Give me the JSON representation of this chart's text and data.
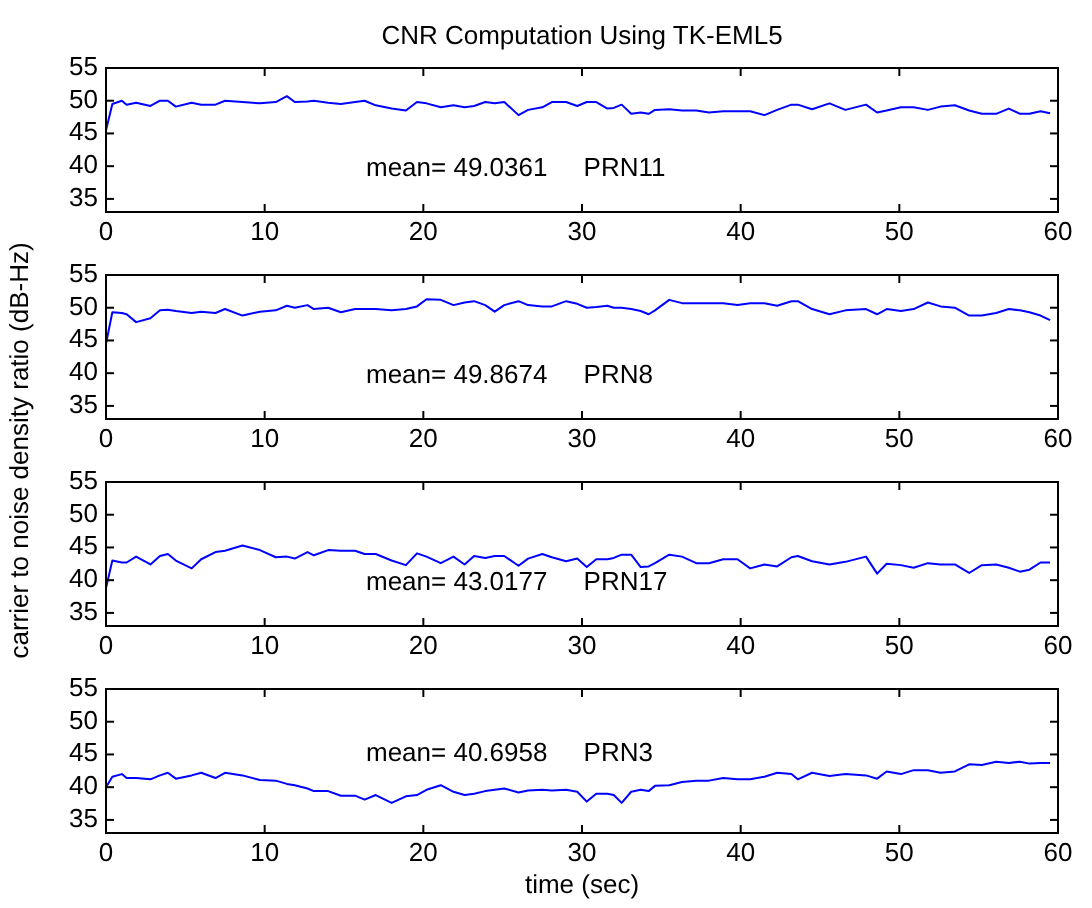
{
  "chart_data": [
    {
      "type": "line",
      "title": "CNR Computation Using TK-EML5",
      "ylabel": "carrier to noise density ratio (dB-Hz)",
      "annotations": [
        "mean= 49.0361     PRN11"
      ],
      "xlim": [
        0,
        60
      ],
      "xticks": [
        0,
        10,
        20,
        30,
        40,
        50,
        60
      ],
      "ylim": [
        33,
        55
      ],
      "yticks": [
        35,
        40,
        45,
        50,
        55
      ],
      "x": [
        0,
        0.4,
        1,
        1.3,
        1.9,
        2.8,
        3.4,
        3.9,
        4.4,
        5.4,
        6,
        6.9,
        7.5,
        8.6,
        9.7,
        10.7,
        11.4,
        11.9,
        12.7,
        13.1,
        14,
        14.8,
        15.7,
        16.3,
        17,
        18,
        18.9,
        19.6,
        20.2,
        21.1,
        21.9,
        22.6,
        23.2,
        23.9,
        24.5,
        25.1,
        26,
        26.6,
        27.5,
        28.1,
        29,
        29.7,
        30.3,
        30.9,
        31.6,
        32,
        32.5,
        33.1,
        33.7,
        34.2,
        34.6,
        35.5,
        36.3,
        37.2,
        38,
        38.9,
        39.8,
        40.6,
        41.5,
        42.3,
        43.2,
        43.6,
        44.5,
        45.6,
        46.6,
        47.9,
        48.6,
        49.2,
        50.1,
        50.9,
        51.8,
        52.6,
        53.5,
        54.4,
        55.2,
        56.1,
        56.9,
        57.6,
        58.2,
        58.9,
        59.5
      ],
      "series": [
        {
          "color": "#0000ff",
          "values": [
            45.5,
            49.5,
            50,
            49.4,
            49.7,
            49.2,
            50,
            50,
            49.1,
            49.7,
            49.4,
            49.4,
            50,
            49.8,
            49.6,
            49.8,
            50.7,
            49.8,
            49.9,
            50,
            49.7,
            49.5,
            49.8,
            50,
            49.3,
            48.8,
            48.5,
            49.8,
            49.6,
            49,
            49.3,
            49,
            49.2,
            49.8,
            49.6,
            49.8,
            47.8,
            48.6,
            49,
            49.8,
            49.8,
            49.2,
            49.8,
            49.8,
            48.8,
            48.9,
            49.4,
            48,
            48.2,
            48,
            48.6,
            48.7,
            48.5,
            48.5,
            48.2,
            48.4,
            48.4,
            48.4,
            47.8,
            48.6,
            49.4,
            49.4,
            48.7,
            49.6,
            48.6,
            49.4,
            48.2,
            48.5,
            49,
            49,
            48.6,
            49.1,
            49.3,
            48.5,
            48,
            48,
            48.8,
            48,
            48,
            48.4,
            48.1
          ]
        }
      ]
    },
    {
      "type": "line",
      "annotations": [
        "mean= 49.8674     PRN8"
      ],
      "xlim": [
        0,
        60
      ],
      "xticks": [
        0,
        10,
        20,
        30,
        40,
        50,
        60
      ],
      "ylim": [
        33,
        55
      ],
      "yticks": [
        35,
        40,
        45,
        50,
        55
      ],
      "x": [
        0,
        0.4,
        1,
        1.3,
        1.9,
        2.8,
        3.4,
        3.9,
        4.4,
        5.4,
        6,
        6.9,
        7.5,
        8.6,
        9.7,
        10.7,
        11.4,
        11.9,
        12.7,
        13.1,
        14,
        14.8,
        15.7,
        16.3,
        17,
        18,
        18.9,
        19.6,
        20.2,
        21.1,
        21.9,
        22.6,
        23.2,
        23.9,
        24.5,
        25.1,
        26,
        26.6,
        27.5,
        28.1,
        29,
        29.7,
        30.3,
        30.9,
        31.6,
        32,
        32.5,
        33.1,
        33.7,
        34.2,
        34.6,
        35.5,
        36.3,
        37.2,
        38,
        38.9,
        39.8,
        40.6,
        41.5,
        42.3,
        43.2,
        43.6,
        44.5,
        45.6,
        46.6,
        47.9,
        48.6,
        49.2,
        50.1,
        50.9,
        51.8,
        52.6,
        53.5,
        54.4,
        55.2,
        56.1,
        56.9,
        57.6,
        58.2,
        58.9,
        59.5
      ],
      "series": [
        {
          "color": "#0000ff",
          "values": [
            44.5,
            49.3,
            49.2,
            49,
            47.8,
            48.4,
            49.6,
            49.7,
            49.5,
            49.2,
            49.4,
            49.2,
            49.8,
            48.8,
            49.4,
            49.6,
            50.3,
            50,
            50.4,
            49.8,
            50,
            49.3,
            49.8,
            49.8,
            49.8,
            49.6,
            49.8,
            50.2,
            51.3,
            51.2,
            50.4,
            50.8,
            51,
            50.4,
            49.4,
            50.4,
            51,
            50.4,
            50.2,
            50.2,
            51,
            50.6,
            50,
            50.1,
            50.3,
            50,
            50,
            49.8,
            49.5,
            49,
            49.6,
            51.2,
            50.7,
            50.7,
            50.7,
            50.7,
            50.4,
            50.7,
            50.7,
            50.3,
            51,
            51,
            49.8,
            49,
            49.6,
            49.8,
            49,
            49.8,
            49.5,
            49.8,
            50.8,
            50.2,
            50,
            48.8,
            48.8,
            49.2,
            49.8,
            49.6,
            49.3,
            48.8,
            48.1
          ]
        }
      ]
    },
    {
      "type": "line",
      "annotations": [
        "mean= 43.0177     PRN17"
      ],
      "xlim": [
        0,
        60
      ],
      "xticks": [
        0,
        10,
        20,
        30,
        40,
        50,
        60
      ],
      "ylim": [
        33,
        55
      ],
      "yticks": [
        35,
        40,
        45,
        50,
        55
      ],
      "x": [
        0,
        0.4,
        1,
        1.3,
        1.9,
        2.8,
        3.4,
        3.9,
        4.4,
        5.4,
        6,
        6.9,
        7.5,
        8.6,
        9.7,
        10.7,
        11.4,
        11.9,
        12.7,
        13.1,
        14,
        14.8,
        15.7,
        16.3,
        17,
        18,
        18.9,
        19.6,
        20.2,
        21.1,
        21.9,
        22.6,
        23.2,
        23.9,
        24.5,
        25.1,
        26,
        26.6,
        27.5,
        28.1,
        29,
        29.7,
        30.3,
        30.9,
        31.6,
        32,
        32.5,
        33.1,
        33.7,
        34.2,
        34.6,
        35.5,
        36.3,
        37.2,
        38,
        38.9,
        39.8,
        40.6,
        41.5,
        42.3,
        43.2,
        43.6,
        44.5,
        45.6,
        46.6,
        47.9,
        48.6,
        49.2,
        50.1,
        50.9,
        51.8,
        52.6,
        53.5,
        54.4,
        55.2,
        56.1,
        56.9,
        57.6,
        58.2,
        58.9,
        59.5
      ],
      "series": [
        {
          "color": "#0000ff",
          "values": [
            38.8,
            43,
            42.7,
            42.7,
            43.6,
            42.4,
            43.7,
            44,
            43,
            41.8,
            43.2,
            44.3,
            44.5,
            45.3,
            44.6,
            43.5,
            43.6,
            43.3,
            44.3,
            43.8,
            44.6,
            44.5,
            44.5,
            44,
            44,
            43,
            42.3,
            44.1,
            43.6,
            42.6,
            43.6,
            42.4,
            43.7,
            43.4,
            43.7,
            43.7,
            42.2,
            43.3,
            44,
            43.5,
            42.9,
            43.3,
            42,
            43.2,
            43.2,
            43.4,
            43.9,
            43.9,
            42,
            42.1,
            42.6,
            43.9,
            43.6,
            42.6,
            42.6,
            43.2,
            43.2,
            41.8,
            42.4,
            42.1,
            43.5,
            43.7,
            42.9,
            42.4,
            42.8,
            43.6,
            41,
            42.5,
            42.3,
            41.9,
            42.6,
            42.4,
            42.4,
            41.1,
            42.3,
            42.4,
            41.9,
            41.3,
            41.6,
            42.7,
            42.7
          ]
        }
      ]
    },
    {
      "type": "line",
      "xlabel": "time (sec)",
      "annotations": [
        "mean= 40.6958     PRN3"
      ],
      "xlim": [
        0,
        60
      ],
      "xticks": [
        0,
        10,
        20,
        30,
        40,
        50,
        60
      ],
      "ylim": [
        33,
        55
      ],
      "yticks": [
        35,
        40,
        45,
        50,
        55
      ],
      "x": [
        0,
        0.4,
        1,
        1.3,
        1.9,
        2.8,
        3.4,
        3.9,
        4.4,
        5.4,
        6,
        6.9,
        7.5,
        8.6,
        9.7,
        10.7,
        11.4,
        11.9,
        12.7,
        13.1,
        14,
        14.8,
        15.7,
        16.3,
        17,
        18,
        18.9,
        19.6,
        20.2,
        21.1,
        21.9,
        22.6,
        23.2,
        23.9,
        24.5,
        25.1,
        26,
        26.6,
        27.5,
        28.1,
        29,
        29.7,
        30.3,
        30.9,
        31.6,
        32,
        32.5,
        33.1,
        33.7,
        34.2,
        34.6,
        35.5,
        36.3,
        37.2,
        38,
        38.9,
        39.8,
        40.6,
        41.5,
        42.3,
        43.2,
        43.6,
        44.5,
        45.6,
        46.6,
        47.9,
        48.6,
        49.2,
        50.1,
        50.9,
        51.8,
        52.6,
        53.5,
        54.4,
        55.2,
        56.1,
        56.9,
        57.6,
        58.2,
        58.9,
        59.5
      ],
      "series": [
        {
          "color": "#0000ff",
          "values": [
            40,
            41.6,
            42,
            41.4,
            41.4,
            41.2,
            41.8,
            42.2,
            41.3,
            41.8,
            42.2,
            41.4,
            42.2,
            41.8,
            41.1,
            41,
            40.5,
            40.3,
            39.8,
            39.4,
            39.4,
            38.7,
            38.7,
            38.1,
            38.8,
            37.6,
            38.6,
            38.8,
            39.6,
            40.3,
            39.3,
            38.8,
            39,
            39.4,
            39.6,
            39.8,
            39.2,
            39.5,
            39.6,
            39.5,
            39.6,
            39.3,
            37.8,
            39,
            39,
            38.8,
            37.6,
            39.3,
            39.6,
            39.4,
            40.2,
            40.3,
            40.8,
            41,
            41,
            41.4,
            41.2,
            41.2,
            41.6,
            42.2,
            42,
            41.2,
            42.2,
            41.7,
            42,
            41.8,
            41.3,
            42.4,
            42,
            42.6,
            42.6,
            42.2,
            42.4,
            43.5,
            43.4,
            43.9,
            43.7,
            43.9,
            43.6,
            43.7,
            43.7
          ]
        }
      ]
    }
  ]
}
